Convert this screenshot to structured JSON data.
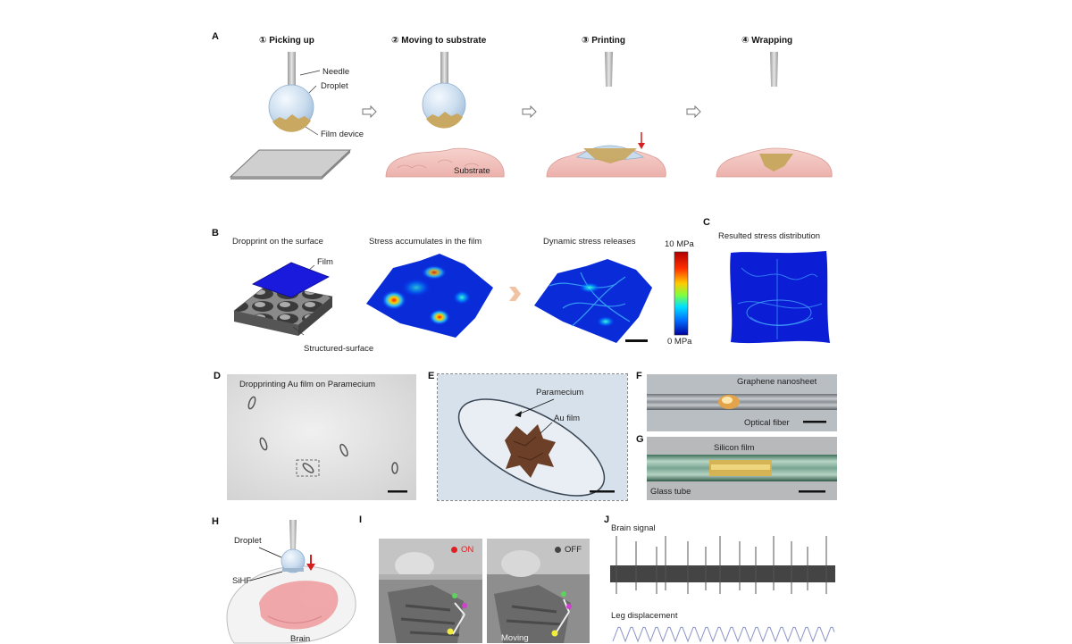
{
  "panelA": {
    "label": "A",
    "steps": [
      "① Picking up",
      "② Moving to substrate",
      "③ Printing",
      "④ Wrapping"
    ],
    "needle": "Needle",
    "droplet": "Droplet",
    "film_device": "Film device",
    "substrate": "Substrate"
  },
  "panelB": {
    "label": "B",
    "title1": "Dropprint on the surface",
    "title2": "Stress accumulates in the film",
    "title3": "Dynamic stress releases",
    "film": "Film",
    "structured_surface": "Structured-surface",
    "colorbar_max": "10 MPa",
    "colorbar_min": "0 MPa"
  },
  "panelC": {
    "label": "C",
    "title": "Resulted stress distribution"
  },
  "panelD": {
    "label": "D",
    "title": "Dropprinting Au film on Paramecium"
  },
  "panelE": {
    "label": "E",
    "paramecium": "Paramecium",
    "au_film": "Au film"
  },
  "panelF": {
    "label": "F",
    "graphene": "Graphene nanosheet",
    "optical_fiber": "Optical fiber"
  },
  "panelG": {
    "label": "G",
    "silicon_film": "Silicon film",
    "glass_tube": "Glass tube"
  },
  "panelH": {
    "label": "H",
    "droplet": "Droplet",
    "sihf": "SiHF",
    "brain": "Brain"
  },
  "panelI": {
    "label": "I",
    "on": "ON",
    "off": "OFF",
    "moving": "Moving"
  },
  "panelJ": {
    "label": "J",
    "brain_signal": "Brain signal",
    "leg_displacement": "Leg displacement"
  },
  "colors": {
    "droplet": "#c9dcee",
    "film": "#c9a862",
    "tissue": "#f1c3bf",
    "brain": "#ee9ea2",
    "arrow_red": "#d42020",
    "on_dot": "#e02020",
    "off_dot": "#444444"
  }
}
